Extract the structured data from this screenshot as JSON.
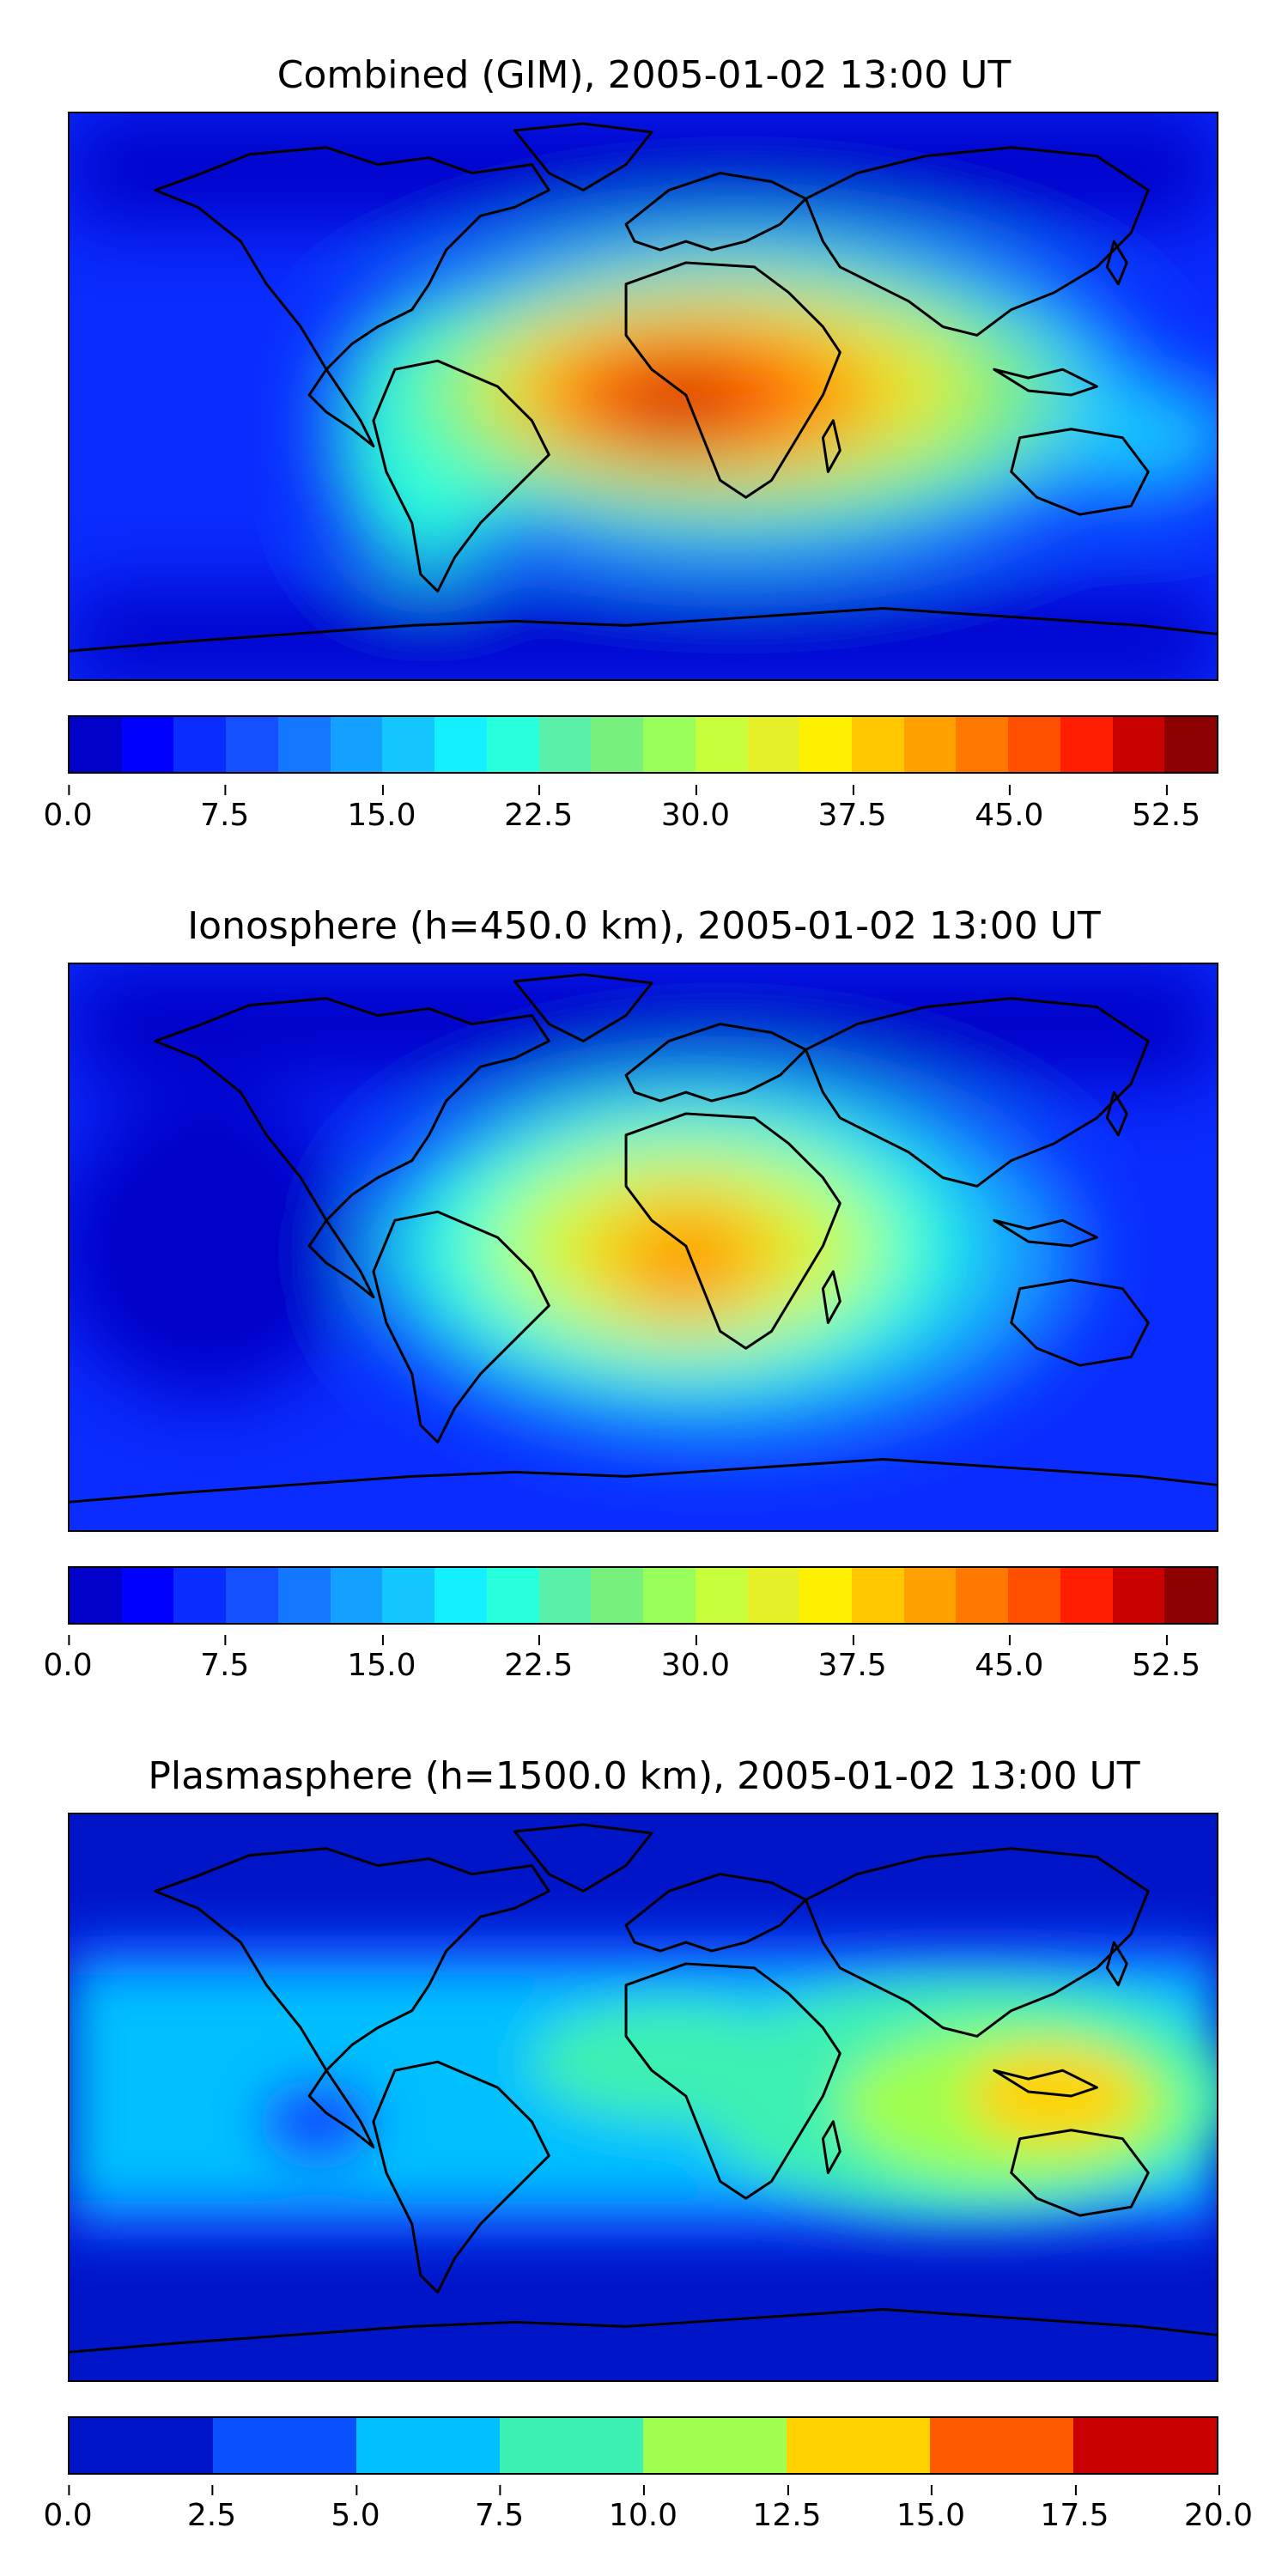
{
  "figure": {
    "panels": [
      {
        "id": "combined",
        "title": "Combined (GIM), 2005-01-02 13:00 UT",
        "colorbar": {
          "min": 0,
          "max": 55,
          "levels": 22,
          "colors": [
            "#00008c",
            "#0000c8",
            "#0000ff",
            "#0a2cff",
            "#1450ff",
            "#1478ff",
            "#14a0ff",
            "#14c8ff",
            "#14f0ff",
            "#28ffdc",
            "#5af0aa",
            "#78f07c",
            "#9aff5a",
            "#c8ff3c",
            "#e6f028",
            "#fff000",
            "#ffc800",
            "#ffa000",
            "#ff7800",
            "#ff5000",
            "#ff1e00",
            "#c80000",
            "#8c0000"
          ],
          "ticks": [
            "0.0",
            "7.5",
            "15.0",
            "22.5",
            "30.0",
            "37.5",
            "45.0",
            "52.5"
          ],
          "tick_values": [
            0,
            7.5,
            15.0,
            22.5,
            30.0,
            37.5,
            45.0,
            52.5
          ]
        }
      },
      {
        "id": "ionosphere",
        "title": "Ionosphere  (h=450.0 km), 2005-01-02 13:00 UT",
        "colorbar": {
          "min": 0,
          "max": 55,
          "levels": 22,
          "colors": [
            "#00008c",
            "#0000c8",
            "#0000ff",
            "#0a2cff",
            "#1450ff",
            "#1478ff",
            "#14a0ff",
            "#14c8ff",
            "#14f0ff",
            "#28ffdc",
            "#5af0aa",
            "#78f07c",
            "#9aff5a",
            "#c8ff3c",
            "#e6f028",
            "#fff000",
            "#ffc800",
            "#ffa000",
            "#ff7800",
            "#ff5000",
            "#ff1e00",
            "#c80000",
            "#8c0000"
          ],
          "ticks": [
            "0.0",
            "7.5",
            "15.0",
            "22.5",
            "30.0",
            "37.5",
            "45.0",
            "52.5"
          ],
          "tick_values": [
            0,
            7.5,
            15.0,
            22.5,
            30.0,
            37.5,
            45.0,
            52.5
          ]
        }
      },
      {
        "id": "plasmasphere",
        "title": "Plasmasphere (h=1500.0 km), 2005-01-02 13:00 UT",
        "colorbar": {
          "min": 0,
          "max": 20,
          "levels": 8,
          "colors": [
            "#0014c8",
            "#0a50ff",
            "#00c0ff",
            "#3cf0b4",
            "#a0ff50",
            "#ffd200",
            "#ff5a00",
            "#c80000"
          ],
          "ticks": [
            "0.0",
            "2.5",
            "5.0",
            "7.5",
            "10.0",
            "12.5",
            "15.0",
            "17.5",
            "20.0"
          ],
          "tick_values": [
            0,
            2.5,
            5.0,
            7.5,
            10.0,
            12.5,
            15.0,
            17.5,
            20.0
          ]
        }
      }
    ]
  }
}
